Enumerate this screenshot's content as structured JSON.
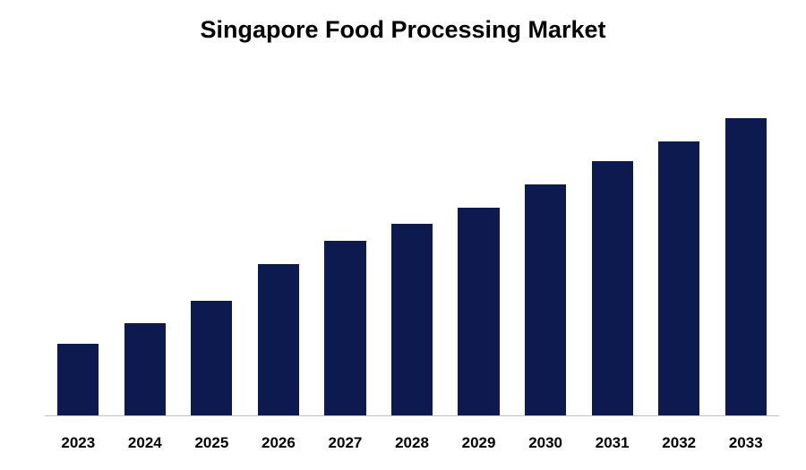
{
  "chart": {
    "type": "bar",
    "title": "Singapore Food Processing Market",
    "title_fontsize": 27,
    "title_color": "#000000",
    "background_color": "#ffffff",
    "categories": [
      "2023",
      "2024",
      "2025",
      "2026",
      "2027",
      "2028",
      "2029",
      "2030",
      "2031",
      "2032",
      "2033"
    ],
    "values": [
      22,
      28,
      35,
      46,
      53,
      58,
      63,
      70,
      77,
      83,
      90
    ],
    "ylim": [
      0,
      100
    ],
    "bar_color": "#0c1a50",
    "bar_width_pct": 62,
    "baseline_color": "#bfbfbf",
    "xlabel_fontsize": 17,
    "xlabel_fontweight": "700",
    "xlabel_color": "#000000"
  }
}
